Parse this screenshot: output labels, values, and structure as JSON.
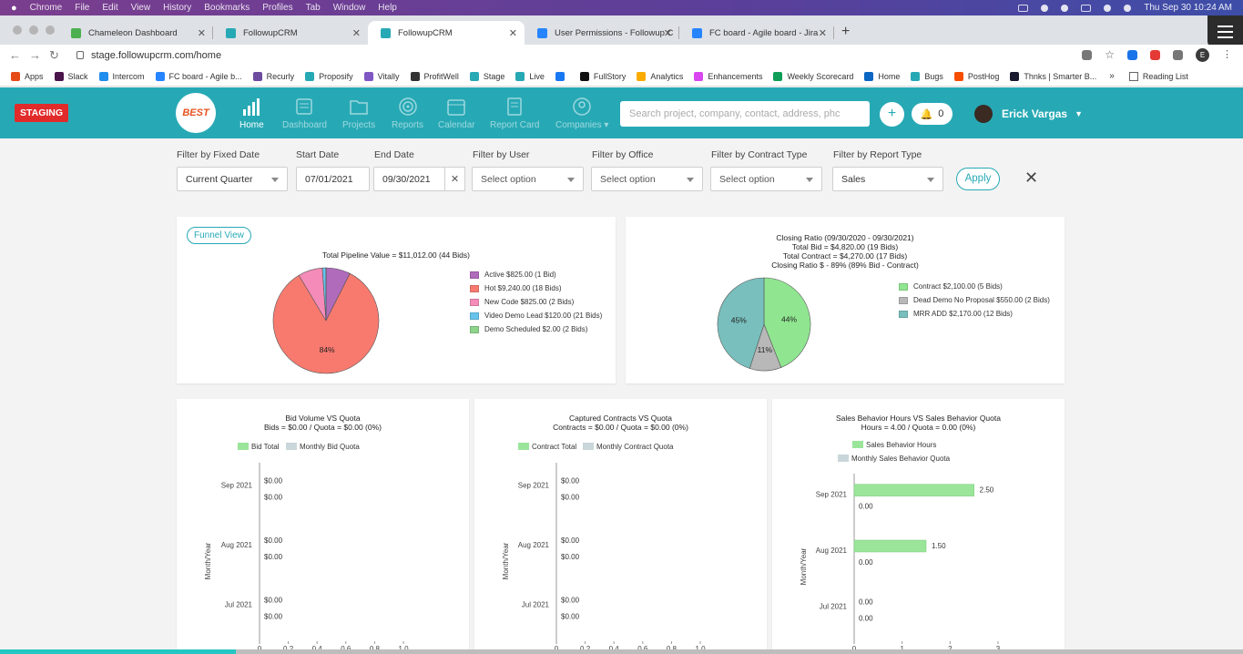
{
  "mac_menu": {
    "items": [
      "Chrome",
      "File",
      "Edit",
      "View",
      "History",
      "Bookmarks",
      "Profiles",
      "Tab",
      "Window",
      "Help"
    ],
    "clock": "Thu Sep 30  10:24 AM"
  },
  "browser": {
    "tabs": [
      {
        "title": "Chameleon Dashboard",
        "fav_color": "#4caf50"
      },
      {
        "title": "FollowupCRM",
        "fav_color": "#27a9b5"
      },
      {
        "title": "FollowupCRM",
        "fav_color": "#27a9b5",
        "active": true
      },
      {
        "title": "User Permissions - Followup C",
        "fav_color": "#2684ff"
      },
      {
        "title": "FC board - Agile board - Jira",
        "fav_color": "#2684ff"
      }
    ],
    "url": "stage.followupcrm.com/home",
    "bookmarks": [
      {
        "label": "Apps",
        "color": "#e64a19"
      },
      {
        "label": "Slack",
        "color": "#4a154b"
      },
      {
        "label": "Intercom",
        "color": "#1f8ded"
      },
      {
        "label": "FC board - Agile b...",
        "color": "#2684ff"
      },
      {
        "label": "Recurly",
        "color": "#6d4c9f"
      },
      {
        "label": "Proposify",
        "color": "#27a9b5"
      },
      {
        "label": "Vitally",
        "color": "#7e57c2"
      },
      {
        "label": "ProfitWell",
        "color": "#333333"
      },
      {
        "label": "Stage",
        "color": "#27a9b5"
      },
      {
        "label": "Live",
        "color": "#27a9b5"
      },
      {
        "label": "",
        "color": "#1877f2"
      },
      {
        "label": "FullStory",
        "color": "#111111"
      },
      {
        "label": "Analytics",
        "color": "#f9ab00"
      },
      {
        "label": "Enhancements",
        "color": "#d946ef"
      },
      {
        "label": "Weekly Scorecard",
        "color": "#0f9d58"
      },
      {
        "label": "Home",
        "color": "#0a66c2"
      },
      {
        "label": "Bugs",
        "color": "#27a9b5"
      },
      {
        "label": "PostHog",
        "color": "#f54e00"
      },
      {
        "label": "Thnks | Smarter B...",
        "color": "#1a1a2e"
      }
    ],
    "more": "»",
    "reading_list": "Reading List"
  },
  "app": {
    "staging_badge": "STAGING",
    "logo_text": "BEST",
    "nav": [
      {
        "label": "Home",
        "active": true
      },
      {
        "label": "Dashboard"
      },
      {
        "label": "Projects"
      },
      {
        "label": "Reports"
      },
      {
        "label": "Calendar"
      },
      {
        "label": "Report Card"
      },
      {
        "label": "Companies ▾"
      }
    ],
    "search_placeholder": "Search project, company, contact, address, phc",
    "notif_count": "0",
    "user_name": "Erick Vargas"
  },
  "filters": {
    "fixed_date": {
      "label": "Filter by Fixed Date",
      "value": "Current Quarter"
    },
    "start_date": {
      "label": "Start Date",
      "value": "07/01/2021"
    },
    "end_date": {
      "label": "End Date",
      "value": "09/30/2021"
    },
    "user": {
      "label": "Filter by User",
      "value": "Select option"
    },
    "office": {
      "label": "Filter by Office",
      "value": "Select option"
    },
    "contract_type": {
      "label": "Filter by Contract Type",
      "value": "Select option"
    },
    "report_type": {
      "label": "Filter by Report Type",
      "value": "Sales"
    },
    "apply": "Apply",
    "clear_x": "✕"
  },
  "pipeline_card": {
    "funnel_button": "Funnel View",
    "chart_data": {
      "type": "pie",
      "title": "Total Pipeline Value = $11,012.00 (44 Bids)",
      "slices": [
        {
          "label": "Active $825.00 (1 Bid)",
          "value": 825,
          "color": "#b06bbb"
        },
        {
          "label": "Hot $9,240.00 (18 Bids)",
          "value": 9240,
          "color": "#f87a6f"
        },
        {
          "label": "New Code $825.00 (2 Bids)",
          "value": 825,
          "color": "#f58bb8"
        },
        {
          "label": "Video Demo Lead $120.00 (21 Bids)",
          "value": 120,
          "color": "#66c4ec"
        },
        {
          "label": "Demo Scheduled $2.00 (2 Bids)",
          "value": 2,
          "color": "#8ed38a"
        }
      ],
      "data_labels": [
        "84%"
      ]
    }
  },
  "closing_card": {
    "chart_data": {
      "type": "pie",
      "title_lines": [
        "Closing Ratio (09/30/2020 - 09/30/2021)",
        "Total Bid = $4,820.00 (19 Bids)",
        "Total Contract = $4,270.00 (17 Bids)",
        "Closing Ratio $ - 89% (89% Bid - Contract)"
      ],
      "slices": [
        {
          "label": "Contract $2,100.00 (5 Bids)",
          "value": 44,
          "color": "#90e690",
          "pct": "44%"
        },
        {
          "label": "Dead Demo No Proposal  $550.00 (2 Bids)",
          "value": 11,
          "color": "#b8b8b8",
          "pct": "11%"
        },
        {
          "label": "MRR ADD $2,170.00 (12 Bids)",
          "value": 45,
          "color": "#78bfbd",
          "pct": "45%"
        }
      ]
    }
  },
  "bid_volume_card": {
    "chart_data": {
      "type": "bar",
      "orientation": "horizontal",
      "title": "Bid Volume VS Quota",
      "subtitle": "Bids = $0.00 / Quota = $0.00 (0%)",
      "ylabel": "Month/Year",
      "categories": [
        "Sep 2021",
        "Aug 2021",
        "Jul 2021"
      ],
      "series": [
        {
          "name": "Bid Total",
          "values": [
            0,
            0,
            0
          ],
          "labels": [
            "$0.00",
            "$0.00",
            "$0.00"
          ],
          "color": "#9ae59a"
        },
        {
          "name": "Monthly Bid Quota",
          "values": [
            0,
            0,
            0
          ],
          "labels": [
            "$0.00",
            "$0.00",
            "$0.00"
          ],
          "color": "#c9d6da"
        }
      ],
      "xticks": [
        "0",
        "0.2",
        "0.4",
        "0.6",
        "0.8",
        "1.0"
      ],
      "xlim": [
        0,
        1
      ]
    }
  },
  "contracts_card": {
    "chart_data": {
      "type": "bar",
      "orientation": "horizontal",
      "title": "Captured Contracts VS Quota",
      "subtitle": "Contracts = $0.00 / Quota = $0.00 (0%)",
      "ylabel": "Month/Year",
      "categories": [
        "Sep 2021",
        "Aug 2021",
        "Jul 2021"
      ],
      "series": [
        {
          "name": "Contract Total",
          "values": [
            0,
            0,
            0
          ],
          "labels": [
            "$0.00",
            "$0.00",
            "$0.00"
          ],
          "color": "#9ae59a"
        },
        {
          "name": "Monthly Contract Quota",
          "values": [
            0,
            0,
            0
          ],
          "labels": [
            "$0.00",
            "$0.00",
            "$0.00"
          ],
          "color": "#c9d6da"
        }
      ],
      "xticks": [
        "0",
        "0.2",
        "0.4",
        "0.6",
        "0.8",
        "1.0"
      ],
      "xlim": [
        0,
        1
      ]
    }
  },
  "behavior_card": {
    "chart_data": {
      "type": "bar",
      "orientation": "horizontal",
      "title": "Sales Behavior Hours VS Sales Behavior Quota",
      "subtitle": "Hours = 4.00 / Quota = 0.00 (0%)",
      "ylabel": "Month/Year",
      "categories": [
        "Sep 2021",
        "Aug 2021",
        "Jul 2021"
      ],
      "series": [
        {
          "name": "Sales Behavior Hours",
          "values": [
            2.5,
            1.5,
            0
          ],
          "labels": [
            "2.50",
            "1.50",
            "0.00"
          ],
          "color": "#9ae59a"
        },
        {
          "name": "Monthly Sales Behavior Quota",
          "values": [
            0,
            0,
            0
          ],
          "labels": [
            "0.00",
            "0.00",
            "0.00"
          ],
          "color": "#c9d6da"
        }
      ],
      "xticks": [
        "0",
        "1",
        "2",
        "3"
      ],
      "xlim": [
        0,
        3
      ]
    }
  },
  "bottom_progress": 0.19
}
